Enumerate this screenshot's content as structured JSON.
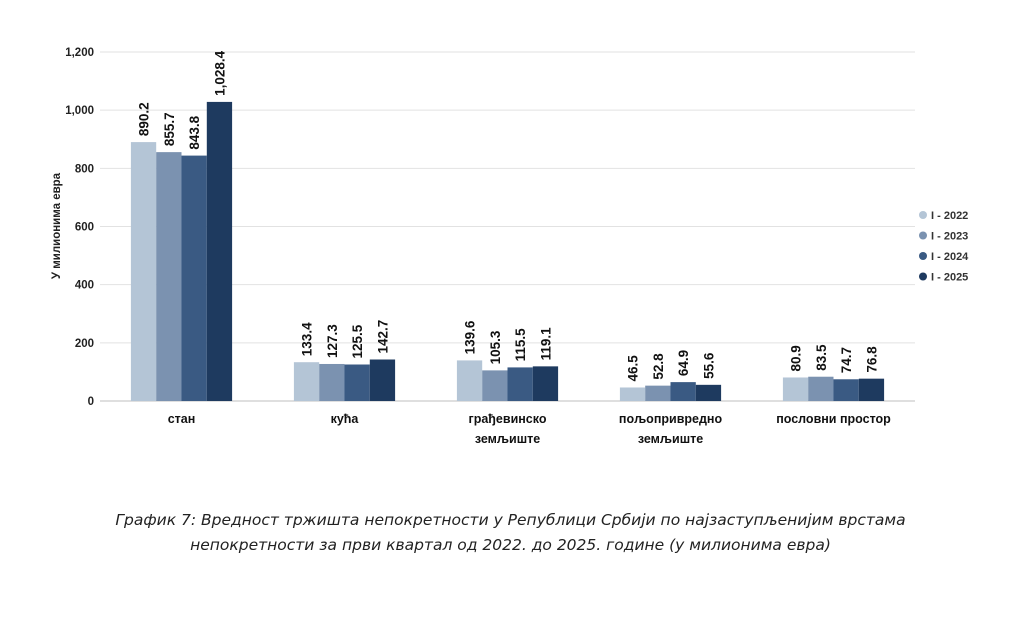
{
  "chart_data": {
    "type": "bar",
    "ylabel": "У милионима евра",
    "ylim": [
      0,
      1200
    ],
    "yticks": [
      0,
      200,
      400,
      600,
      800,
      1000,
      1200
    ],
    "ytick_labels": [
      "0",
      "200",
      "400",
      "600",
      "800",
      "1,000",
      "1,200"
    ],
    "grid": true,
    "legend_position": "right",
    "categories": [
      [
        "стан"
      ],
      [
        "кућа"
      ],
      [
        "грађевинско",
        "земљиште"
      ],
      [
        "пољопривредно",
        "земљиште"
      ],
      [
        "пословни простор"
      ]
    ],
    "series": [
      {
        "name": "I - 2022",
        "color": "#b4c5d6",
        "values": [
          890.2,
          133.4,
          139.6,
          46.5,
          80.9
        ]
      },
      {
        "name": "I - 2023",
        "color": "#7b92b0",
        "values": [
          855.7,
          127.3,
          105.3,
          52.8,
          83.5
        ]
      },
      {
        "name": "I - 2024",
        "color": "#3a5a83",
        "values": [
          843.8,
          125.5,
          115.5,
          64.9,
          74.7
        ]
      },
      {
        "name": "I - 2025",
        "color": "#1e3a5f",
        "values": [
          1028.4,
          142.7,
          119.1,
          55.6,
          76.8
        ]
      }
    ]
  },
  "caption": {
    "line1": "График 7: Вредност тржишта непокретности у Републици Србији по најзаступљенијим врстама",
    "line2": "непокретности за први квартал од 2022. до 2025. године (у милионима евра)"
  }
}
